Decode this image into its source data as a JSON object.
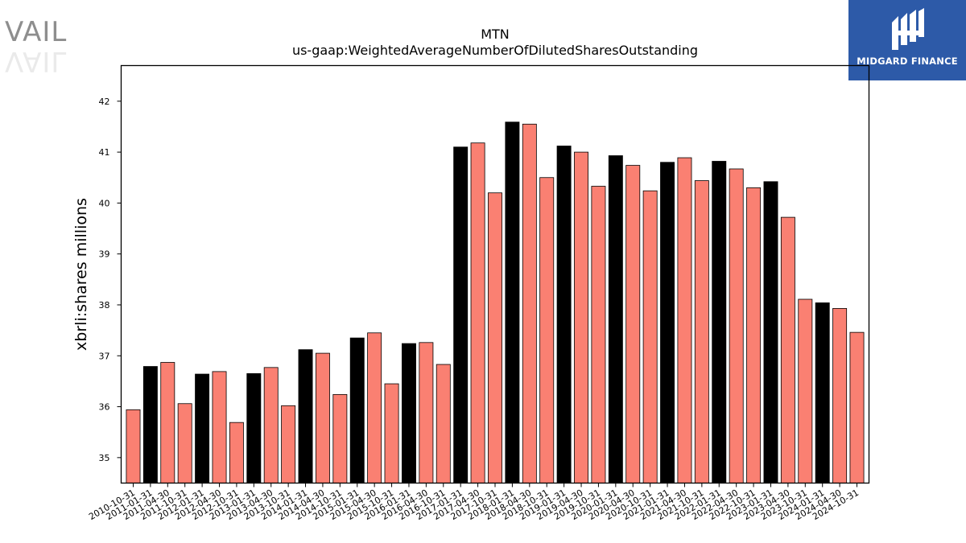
{
  "logos": {
    "left_text": "VAIL",
    "right_text": "MIDGARD FINANCE",
    "right_color": "#2d5aa8"
  },
  "chart_data": {
    "type": "bar",
    "title": "MTN",
    "subtitle": "us-gaap:WeightedAverageNumberOfDilutedSharesOutstanding",
    "xlabel": "",
    "ylabel": "xbrli:shares millions",
    "ylim": [
      34.5,
      42.7
    ],
    "yticks": [
      35,
      36,
      37,
      38,
      39,
      40,
      41,
      42
    ],
    "grid": false,
    "colors": {
      "fiscal_year_end": "#000000",
      "quarter": "#fa8072",
      "edge": "#000000"
    },
    "categories": [
      "2010-10-31",
      "2011-01-31",
      "2011-04-30",
      "2011-10-31",
      "2012-01-31",
      "2012-04-30",
      "2012-10-31",
      "2013-01-31",
      "2013-04-30",
      "2013-10-31",
      "2014-01-31",
      "2014-04-30",
      "2014-10-31",
      "2015-01-31",
      "2015-04-30",
      "2015-10-31",
      "2016-01-31",
      "2016-04-30",
      "2016-10-31",
      "2017-01-31",
      "2017-04-30",
      "2017-10-31",
      "2018-01-31",
      "2018-04-30",
      "2018-10-31",
      "2019-01-31",
      "2019-04-30",
      "2019-10-31",
      "2020-01-31",
      "2020-04-30",
      "2020-10-31",
      "2021-01-31",
      "2021-04-30",
      "2021-10-31",
      "2022-01-31",
      "2022-04-30",
      "2022-10-31",
      "2023-01-31",
      "2023-04-30",
      "2023-10-31",
      "2024-01-31",
      "2024-04-30",
      "2024-10-31"
    ],
    "values": [
      35.94,
      36.79,
      36.87,
      36.06,
      36.64,
      36.69,
      35.69,
      36.65,
      36.77,
      36.02,
      37.12,
      37.05,
      36.24,
      37.35,
      37.45,
      36.45,
      37.24,
      37.26,
      36.83,
      41.1,
      41.18,
      40.2,
      41.59,
      41.55,
      40.5,
      41.12,
      41.0,
      40.33,
      40.93,
      40.74,
      40.24,
      40.8,
      40.89,
      40.44,
      40.82,
      40.67,
      40.3,
      40.42,
      39.72,
      38.11,
      38.04,
      37.93,
      37.46
    ],
    "highlight": [
      false,
      true,
      false,
      false,
      true,
      false,
      false,
      true,
      false,
      false,
      true,
      false,
      false,
      true,
      false,
      false,
      true,
      false,
      false,
      true,
      false,
      false,
      true,
      false,
      false,
      true,
      false,
      false,
      true,
      false,
      false,
      true,
      false,
      false,
      true,
      false,
      false,
      true,
      false,
      false,
      true,
      false,
      false
    ]
  }
}
